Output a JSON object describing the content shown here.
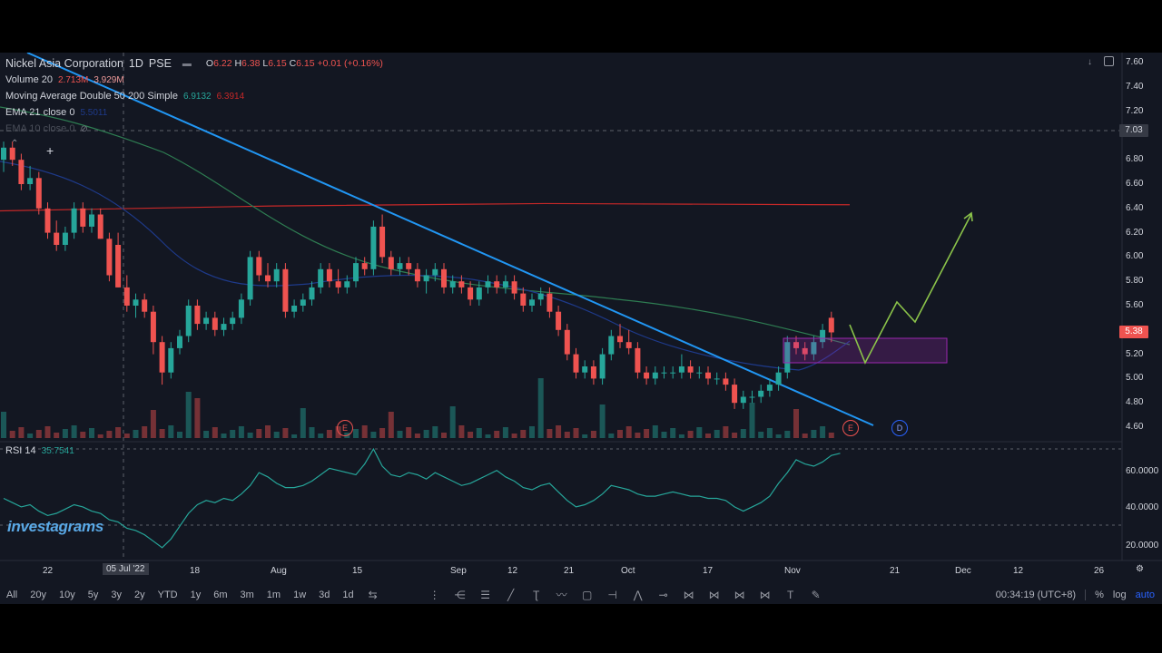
{
  "header": {
    "symbol": "Nickel Asia Corporation",
    "interval": "1D",
    "exchange": "PSE",
    "ohlc": {
      "o": "6.22",
      "h": "6.38",
      "l": "6.15",
      "c": "6.15",
      "chg": "+0.01 (+0.16%)"
    }
  },
  "indicators": {
    "volume": {
      "name": "Volume 20",
      "v1": "2.713M",
      "v2": "3.929M"
    },
    "ma_double": {
      "name": "Moving Average Double 50 200 Simple",
      "v1": "6.9132",
      "v2": "6.3914"
    },
    "ema21": {
      "name": "EMA 21 close 0",
      "v1": "5.5011"
    },
    "ema10": {
      "name": "EMA 10 close 0"
    }
  },
  "rsi": {
    "name": "RSI 14",
    "value": "35.7541",
    "ticks": [
      "60.0000",
      "40.0000",
      "20.0000"
    ]
  },
  "price_axis": {
    "ticks": [
      "7.60",
      "7.40",
      "7.20",
      "6.80",
      "6.60",
      "6.40",
      "6.20",
      "6.00",
      "5.80",
      "5.60",
      "5.00",
      "4.80",
      "4.60"
    ],
    "crosshair_label": "7.03",
    "last_label": "5.38",
    "label_520": "5.20"
  },
  "time_axis": {
    "ticks": [
      "22",
      "18",
      "Aug",
      "15",
      "Sep",
      "12",
      "21",
      "Oct",
      "17",
      "Nov",
      "21",
      "Dec",
      "12",
      "26"
    ],
    "crosshair_label": "05 Jul '22"
  },
  "bottom_bar": {
    "ranges": [
      "All",
      "20y",
      "10y",
      "5y",
      "3y",
      "2y",
      "YTD",
      "1y",
      "6m",
      "3m",
      "1m",
      "1w",
      "3d",
      "1d"
    ],
    "clock": "00:34:19 (UTC+8)",
    "pct": "%",
    "log": "log",
    "auto": "auto"
  },
  "watermark": "investagrams",
  "markers": {
    "dividend": "D",
    "earnings": "E"
  },
  "colors": {
    "up": "#26a69a",
    "down": "#ef5350",
    "trendline": "#2196f3",
    "ma200": "#c62828",
    "ma50": "#2e7d52",
    "ema21": "#1e3a8a",
    "projection": "#8bc34a",
    "box": "#9c27b0"
  },
  "chart_data": {
    "type": "candlestick",
    "ylim": [
      4.55,
      7.65
    ],
    "candles": [
      [
        6.8,
        6.95,
        6.7,
        6.9
      ],
      [
        6.9,
        6.95,
        6.75,
        6.8
      ],
      [
        6.8,
        6.85,
        6.55,
        6.6
      ],
      [
        6.6,
        6.75,
        6.55,
        6.65
      ],
      [
        6.65,
        6.7,
        6.35,
        6.4
      ],
      [
        6.4,
        6.45,
        6.15,
        6.2
      ],
      [
        6.2,
        6.3,
        6.05,
        6.1
      ],
      [
        6.1,
        6.25,
        6.05,
        6.2
      ],
      [
        6.2,
        6.45,
        6.15,
        6.4
      ],
      [
        6.4,
        6.45,
        6.2,
        6.25
      ],
      [
        6.25,
        6.4,
        6.2,
        6.35
      ],
      [
        6.35,
        6.4,
        6.15,
        6.15
      ],
      [
        6.15,
        6.2,
        5.8,
        5.85
      ],
      [
        6.1,
        6.2,
        5.75,
        5.75
      ],
      [
        5.75,
        5.85,
        5.55,
        5.6
      ],
      [
        5.6,
        5.7,
        5.5,
        5.65
      ],
      [
        5.65,
        5.7,
        5.5,
        5.55
      ],
      [
        5.55,
        5.6,
        5.2,
        5.3
      ],
      [
        5.3,
        5.35,
        4.95,
        5.05
      ],
      [
        5.05,
        5.3,
        5.0,
        5.25
      ],
      [
        5.25,
        5.4,
        5.2,
        5.35
      ],
      [
        5.35,
        5.65,
        5.3,
        5.6
      ],
      [
        5.6,
        5.65,
        5.4,
        5.45
      ],
      [
        5.45,
        5.55,
        5.4,
        5.5
      ],
      [
        5.5,
        5.55,
        5.35,
        5.4
      ],
      [
        5.4,
        5.5,
        5.35,
        5.45
      ],
      [
        5.45,
        5.55,
        5.4,
        5.5
      ],
      [
        5.5,
        5.7,
        5.45,
        5.65
      ],
      [
        5.65,
        6.05,
        5.6,
        6.0
      ],
      [
        6.0,
        6.05,
        5.8,
        5.85
      ],
      [
        5.85,
        5.95,
        5.75,
        5.8
      ],
      [
        5.8,
        5.95,
        5.75,
        5.9
      ],
      [
        5.9,
        5.95,
        5.5,
        5.55
      ],
      [
        5.55,
        5.65,
        5.5,
        5.6
      ],
      [
        5.6,
        5.7,
        5.55,
        5.65
      ],
      [
        5.65,
        5.8,
        5.6,
        5.75
      ],
      [
        5.75,
        5.95,
        5.7,
        5.9
      ],
      [
        5.9,
        5.95,
        5.75,
        5.8
      ],
      [
        5.8,
        5.9,
        5.7,
        5.75
      ],
      [
        5.75,
        5.85,
        5.7,
        5.8
      ],
      [
        5.8,
        6.0,
        5.75,
        5.95
      ],
      [
        5.95,
        6.0,
        5.85,
        5.9
      ],
      [
        5.9,
        6.3,
        5.85,
        6.25
      ],
      [
        6.25,
        6.35,
        5.95,
        6.0
      ],
      [
        6.0,
        6.05,
        5.85,
        5.9
      ],
      [
        5.9,
        6.0,
        5.85,
        5.95
      ],
      [
        5.95,
        6.0,
        5.85,
        5.9
      ],
      [
        5.9,
        5.95,
        5.75,
        5.8
      ],
      [
        5.8,
        5.9,
        5.7,
        5.85
      ],
      [
        5.85,
        5.95,
        5.8,
        5.9
      ],
      [
        5.9,
        5.95,
        5.7,
        5.75
      ],
      [
        5.75,
        5.85,
        5.7,
        5.8
      ],
      [
        5.8,
        5.85,
        5.7,
        5.75
      ],
      [
        5.75,
        5.8,
        5.6,
        5.65
      ],
      [
        5.65,
        5.8,
        5.6,
        5.75
      ],
      [
        5.75,
        5.85,
        5.7,
        5.8
      ],
      [
        5.8,
        5.85,
        5.7,
        5.75
      ],
      [
        5.75,
        5.85,
        5.7,
        5.8
      ],
      [
        5.8,
        5.85,
        5.65,
        5.7
      ],
      [
        5.7,
        5.75,
        5.55,
        5.6
      ],
      [
        5.6,
        5.7,
        5.55,
        5.65
      ],
      [
        5.65,
        5.75,
        5.6,
        5.7
      ],
      [
        5.7,
        5.75,
        5.5,
        5.55
      ],
      [
        5.55,
        5.6,
        5.35,
        5.4
      ],
      [
        5.4,
        5.45,
        5.15,
        5.2
      ],
      [
        5.2,
        5.25,
        5.0,
        5.05
      ],
      [
        5.05,
        5.15,
        5.0,
        5.1
      ],
      [
        5.1,
        5.15,
        4.95,
        5.0
      ],
      [
        5.0,
        5.25,
        4.95,
        5.2
      ],
      [
        5.2,
        5.4,
        5.15,
        5.35
      ],
      [
        5.35,
        5.45,
        5.25,
        5.3
      ],
      [
        5.3,
        5.4,
        5.2,
        5.25
      ],
      [
        5.25,
        5.3,
        5.0,
        5.05
      ],
      [
        5.05,
        5.1,
        4.95,
        5.0
      ],
      [
        5.0,
        5.1,
        4.95,
        5.05
      ],
      [
        5.05,
        5.1,
        5.0,
        5.05
      ],
      [
        5.05,
        5.1,
        5.0,
        5.05
      ],
      [
        5.05,
        5.2,
        5.0,
        5.1
      ],
      [
        5.1,
        5.15,
        5.0,
        5.05
      ],
      [
        5.05,
        5.1,
        5.0,
        5.05
      ],
      [
        5.05,
        5.1,
        4.95,
        5.0
      ],
      [
        5.0,
        5.05,
        4.95,
        5.0
      ],
      [
        5.0,
        5.05,
        4.9,
        4.95
      ],
      [
        4.95,
        5.0,
        4.75,
        4.8
      ],
      [
        4.8,
        4.9,
        4.75,
        4.85
      ],
      [
        4.85,
        4.9,
        4.8,
        4.85
      ],
      [
        4.85,
        4.95,
        4.8,
        4.9
      ],
      [
        4.9,
        5.0,
        4.85,
        4.95
      ],
      [
        4.95,
        5.1,
        4.9,
        5.05
      ],
      [
        5.05,
        5.35,
        5.0,
        5.3
      ],
      [
        5.3,
        5.35,
        5.2,
        5.25
      ],
      [
        5.25,
        5.3,
        5.15,
        5.2
      ],
      [
        5.2,
        5.35,
        5.15,
        5.3
      ],
      [
        5.3,
        5.45,
        5.25,
        5.4
      ],
      [
        5.5,
        5.55,
        5.3,
        5.38
      ]
    ],
    "ma200": [
      6.4,
      6.43
    ],
    "rsi_range": [
      15,
      70
    ]
  }
}
